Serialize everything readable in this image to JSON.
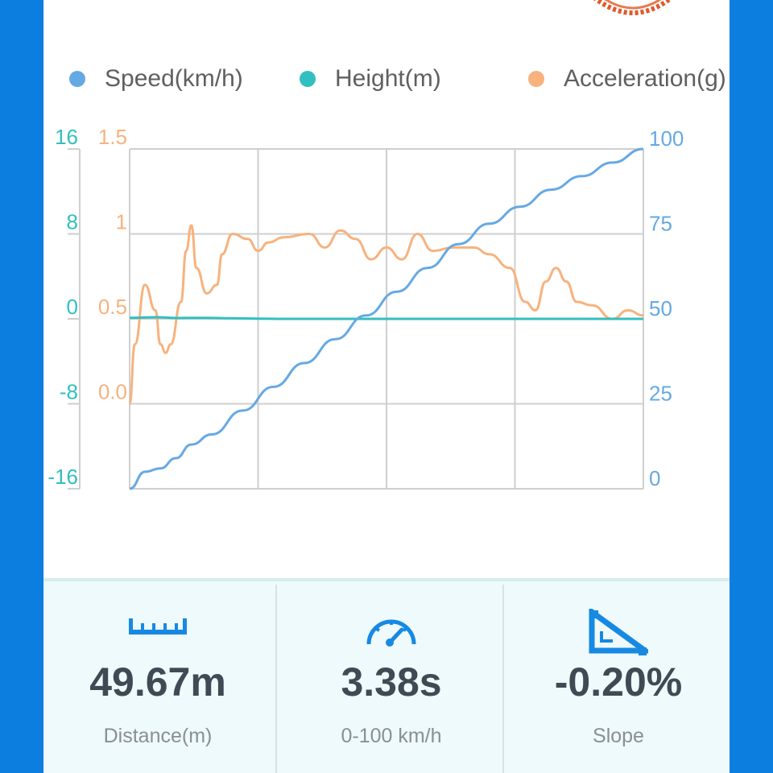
{
  "colors": {
    "speed": "#65a9e3",
    "height": "#32bfc0",
    "acceleration": "#f7b27e",
    "grid": "#cfcfcf",
    "accent": "#1789e3",
    "value_text": "#3f4a55",
    "label_text": "#8a8f94"
  },
  "legend": [
    {
      "name": "Speed(km/h)",
      "color": "#65a9e3"
    },
    {
      "name": "Height(m)",
      "color": "#32bfc0"
    },
    {
      "name": "Acceleration(g)",
      "color": "#f7b27e"
    }
  ],
  "chart_data": {
    "type": "line",
    "title": "",
    "grid": true,
    "legend_position": "top",
    "x": {
      "label": "",
      "range": [
        0,
        1
      ]
    },
    "axes": {
      "height_left": {
        "ticks": [
          "16",
          "8",
          "0",
          "-8",
          "-16"
        ],
        "range": [
          -16,
          16
        ]
      },
      "acceleration_left": {
        "ticks": [
          "1.5",
          "1",
          "0.5",
          "0.0"
        ],
        "range": [
          -0.5,
          1.5
        ]
      },
      "speed_right": {
        "ticks": [
          "100",
          "75",
          "50",
          "25",
          "0"
        ],
        "range": [
          0,
          100
        ]
      }
    },
    "series": [
      {
        "name": "Speed(km/h)",
        "axis": "speed_right",
        "points": [
          [
            0,
            0
          ],
          [
            0.03,
            5
          ],
          [
            0.06,
            6
          ],
          [
            0.09,
            9
          ],
          [
            0.12,
            13
          ],
          [
            0.16,
            16
          ],
          [
            0.22,
            23
          ],
          [
            0.28,
            30
          ],
          [
            0.34,
            37
          ],
          [
            0.4,
            44
          ],
          [
            0.46,
            51
          ],
          [
            0.52,
            58
          ],
          [
            0.58,
            65
          ],
          [
            0.64,
            72
          ],
          [
            0.7,
            78
          ],
          [
            0.76,
            83
          ],
          [
            0.82,
            88
          ],
          [
            0.88,
            92
          ],
          [
            0.94,
            96
          ],
          [
            1.0,
            100
          ]
        ]
      },
      {
        "name": "Height(m)",
        "axis": "height_left",
        "points": [
          [
            0,
            0.1
          ],
          [
            0.05,
            0.15
          ],
          [
            0.1,
            0.08
          ],
          [
            0.15,
            0.1
          ],
          [
            0.2,
            0.05
          ],
          [
            0.25,
            0.02
          ],
          [
            0.3,
            0
          ],
          [
            0.5,
            0
          ],
          [
            0.75,
            0
          ],
          [
            1.0,
            0
          ]
        ]
      },
      {
        "name": "Acceleration(g)",
        "axis": "acceleration_left",
        "points": [
          [
            0,
            0
          ],
          [
            0.01,
            0.35
          ],
          [
            0.03,
            0.7
          ],
          [
            0.05,
            0.55
          ],
          [
            0.06,
            0.35
          ],
          [
            0.07,
            0.3
          ],
          [
            0.08,
            0.35
          ],
          [
            0.1,
            0.6
          ],
          [
            0.11,
            0.9
          ],
          [
            0.12,
            1.05
          ],
          [
            0.13,
            0.8
          ],
          [
            0.15,
            0.65
          ],
          [
            0.17,
            0.7
          ],
          [
            0.18,
            0.88
          ],
          [
            0.2,
            1.0
          ],
          [
            0.23,
            0.97
          ],
          [
            0.25,
            0.9
          ],
          [
            0.27,
            0.95
          ],
          [
            0.3,
            0.98
          ],
          [
            0.35,
            1.0
          ],
          [
            0.38,
            0.92
          ],
          [
            0.41,
            1.02
          ],
          [
            0.44,
            0.97
          ],
          [
            0.47,
            0.85
          ],
          [
            0.5,
            0.92
          ],
          [
            0.53,
            0.85
          ],
          [
            0.56,
            1.0
          ],
          [
            0.59,
            0.9
          ],
          [
            0.63,
            0.92
          ],
          [
            0.67,
            0.92
          ],
          [
            0.7,
            0.88
          ],
          [
            0.74,
            0.8
          ],
          [
            0.77,
            0.6
          ],
          [
            0.79,
            0.55
          ],
          [
            0.81,
            0.72
          ],
          [
            0.83,
            0.8
          ],
          [
            0.85,
            0.72
          ],
          [
            0.87,
            0.6
          ],
          [
            0.9,
            0.58
          ],
          [
            0.94,
            0.5
          ],
          [
            0.97,
            0.55
          ],
          [
            1.0,
            0.52
          ]
        ]
      }
    ]
  },
  "stats": [
    {
      "icon": "ruler-icon",
      "value": "49.67m",
      "label": "Distance(m)"
    },
    {
      "icon": "speedometer-icon",
      "value": "3.38s",
      "label": "0-100 km/h"
    },
    {
      "icon": "slope-icon",
      "value": "-0.20%",
      "label": "Slope"
    }
  ]
}
